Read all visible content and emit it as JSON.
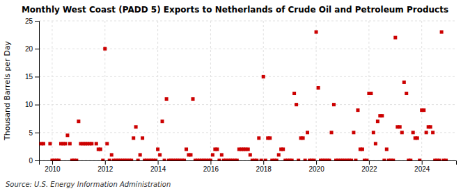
{
  "chart_data": {
    "type": "scatter",
    "title": "Monthly West Coast (PADD 5) Exports to Netherlands of Crude Oil and Petroleum Products",
    "ylabel": "Thousand Barrels per Day",
    "annotations": [
      "Source: U.S. Energy Information Administration"
    ],
    "color": "#cc0000",
    "marker": "square",
    "grid": true,
    "xlim": [
      2009.5,
      2025.3
    ],
    "xticks": [
      2010,
      2012,
      2014,
      2016,
      2018,
      2020,
      2022,
      2024
    ],
    "ylim": [
      0,
      25
    ],
    "yticks": [
      0,
      5,
      10,
      15,
      20,
      25
    ],
    "x": [
      2009.58,
      2009.67,
      2009.92,
      2010.0,
      2010.08,
      2010.17,
      2010.25,
      2010.33,
      2010.42,
      2010.5,
      2010.58,
      2010.67,
      2010.75,
      2010.83,
      2010.92,
      2011.0,
      2011.08,
      2011.17,
      2011.25,
      2011.33,
      2011.42,
      2011.5,
      2011.67,
      2011.75,
      2011.83,
      2011.92,
      2012.0,
      2012.08,
      2012.17,
      2012.25,
      2012.33,
      2012.42,
      2012.5,
      2012.58,
      2012.67,
      2012.75,
      2012.83,
      2012.92,
      2013.0,
      2013.08,
      2013.17,
      2013.25,
      2013.33,
      2013.42,
      2013.5,
      2013.58,
      2013.67,
      2013.75,
      2013.83,
      2013.92,
      2014.0,
      2014.08,
      2014.17,
      2014.25,
      2014.33,
      2014.42,
      2014.5,
      2014.58,
      2014.67,
      2014.75,
      2014.83,
      2014.92,
      2015.0,
      2015.08,
      2015.17,
      2015.25,
      2015.33,
      2015.42,
      2015.5,
      2015.58,
      2015.67,
      2015.75,
      2015.83,
      2015.92,
      2016.0,
      2016.08,
      2016.17,
      2016.25,
      2016.33,
      2016.42,
      2016.5,
      2016.58,
      2016.67,
      2016.75,
      2016.83,
      2016.92,
      2017.0,
      2017.08,
      2017.17,
      2017.25,
      2017.33,
      2017.42,
      2017.5,
      2017.58,
      2017.67,
      2017.75,
      2017.83,
      2017.92,
      2018.0,
      2018.08,
      2018.17,
      2018.25,
      2018.33,
      2018.42,
      2018.5,
      2018.58,
      2018.67,
      2018.75,
      2018.83,
      2018.92,
      2019.0,
      2019.08,
      2019.17,
      2019.25,
      2019.33,
      2019.42,
      2019.5,
      2019.58,
      2019.67,
      2019.75,
      2019.83,
      2019.92,
      2020.0,
      2020.08,
      2020.17,
      2020.25,
      2020.33,
      2020.42,
      2020.5,
      2020.58,
      2020.67,
      2020.75,
      2020.83,
      2020.92,
      2021.0,
      2021.08,
      2021.17,
      2021.25,
      2021.33,
      2021.42,
      2021.5,
      2021.58,
      2021.67,
      2021.75,
      2021.83,
      2021.92,
      2022.0,
      2022.08,
      2022.17,
      2022.25,
      2022.33,
      2022.42,
      2022.5,
      2022.58,
      2022.67,
      2022.75,
      2022.83,
      2022.92,
      2023.0,
      2023.08,
      2023.17,
      2023.25,
      2023.33,
      2023.42,
      2023.5,
      2023.58,
      2023.67,
      2023.75,
      2023.83,
      2023.92,
      2024.0,
      2024.08,
      2024.17,
      2024.25,
      2024.33,
      2024.42,
      2024.5,
      2024.58,
      2024.67,
      2024.75,
      2024.83,
      2024.92
    ],
    "values": [
      3.0,
      3.0,
      3.0,
      0.0,
      0.0,
      0.0,
      0.0,
      3.0,
      3.0,
      3.0,
      4.5,
      3.0,
      0.0,
      0.0,
      0.0,
      7.0,
      3.0,
      3.0,
      3.0,
      3.0,
      3.0,
      3.0,
      3.0,
      2.0,
      2.0,
      0.0,
      20.0,
      3.0,
      0.0,
      1.0,
      0.0,
      0.0,
      0.0,
      0.0,
      0.0,
      0.0,
      0.0,
      0.0,
      0.0,
      4.0,
      6.0,
      0.0,
      1.0,
      4.0,
      0.0,
      0.0,
      0.0,
      0.0,
      0.0,
      0.0,
      2.0,
      1.0,
      7.0,
      0.0,
      11.0,
      0.0,
      0.0,
      0.0,
      0.0,
      0.0,
      0.0,
      0.0,
      0.0,
      2.0,
      1.0,
      1.0,
      11.0,
      0.0,
      0.0,
      0.0,
      0.0,
      0.0,
      0.0,
      0.0,
      0.0,
      1.0,
      2.0,
      2.0,
      0.0,
      1.0,
      0.0,
      0.0,
      0.0,
      0.0,
      0.0,
      0.0,
      0.0,
      2.0,
      2.0,
      2.0,
      2.0,
      2.0,
      1.0,
      0.0,
      0.0,
      0.0,
      4.0,
      0.0,
      15.0,
      0.0,
      4.0,
      4.0,
      0.0,
      0.0,
      0.0,
      1.0,
      2.0,
      2.0,
      0.0,
      0.0,
      0.0,
      0.0,
      12.0,
      10.0,
      0.0,
      4.0,
      4.0,
      0.0,
      5.0,
      0.0,
      0.0,
      0.0,
      23.0,
      13.0,
      0.0,
      0.0,
      0.0,
      0.0,
      0.0,
      5.0,
      10.0,
      0.0,
      0.0,
      0.0,
      0.0,
      0.0,
      0.0,
      0.0,
      0.0,
      5.0,
      0.0,
      9.0,
      2.0,
      2.0,
      0.0,
      0.0,
      12.0,
      12.0,
      5.0,
      3.0,
      7.0,
      8.0,
      8.0,
      0.0,
      2.0,
      0.0,
      0.0,
      0.0,
      22.0,
      6.0,
      6.0,
      5.0,
      14.0,
      12.0,
      0.0,
      0.0,
      5.0,
      4.0,
      4.0,
      0.0,
      9.0,
      9.0,
      5.0,
      6.0,
      6.0,
      5.0,
      0.0,
      0.0,
      0.0,
      23.0,
      0.0,
      0.0
    ]
  }
}
